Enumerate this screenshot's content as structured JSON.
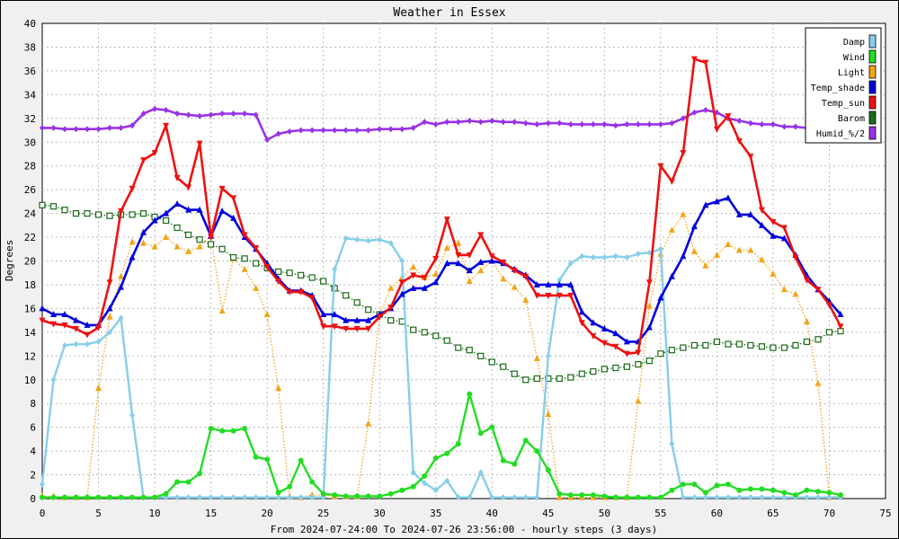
{
  "chart_data": {
    "type": "line",
    "title": "Weather in Essex",
    "xlabel": "From 2024-07-24:00 To 2024-07-26 23:56:00 - hourly steps (3 days)",
    "ylabel": "Degrees",
    "xlim": [
      0,
      75
    ],
    "ylim": [
      0,
      40
    ],
    "xticks": [
      0,
      5,
      10,
      15,
      20,
      25,
      30,
      35,
      40,
      45,
      50,
      55,
      60,
      65,
      70,
      75
    ],
    "yticks": [
      0,
      2,
      4,
      6,
      8,
      10,
      12,
      14,
      16,
      18,
      20,
      22,
      24,
      26,
      28,
      30,
      32,
      34,
      36,
      38,
      40
    ],
    "grid": true,
    "legend_position": "top-right",
    "series": [
      {
        "name": "Damp",
        "color": "#87ceeb",
        "marker": "diamond",
        "style": "solid",
        "x": [
          0,
          1,
          2,
          3,
          4,
          5,
          6,
          7,
          8,
          9,
          10,
          11,
          12,
          13,
          14,
          15,
          16,
          17,
          18,
          19,
          20,
          21,
          22,
          23,
          24,
          25,
          26,
          27,
          28,
          29,
          30,
          31,
          32,
          33,
          34,
          35,
          36,
          37,
          38,
          39,
          40,
          41,
          42,
          43,
          44,
          45,
          46,
          47,
          48,
          49,
          50,
          51,
          52,
          53,
          54,
          55,
          56,
          57,
          58,
          59,
          60,
          61,
          62,
          63,
          64,
          65,
          66,
          67,
          68,
          69,
          70,
          71
        ],
        "values": [
          1.2,
          10.0,
          12.9,
          13.0,
          13.0,
          13.2,
          14.0,
          15.2,
          7.0,
          0.1,
          0.1,
          0.1,
          0.1,
          0.1,
          0.1,
          0.1,
          0.1,
          0.1,
          0.1,
          0.1,
          0.1,
          0.1,
          0.1,
          0.1,
          0.1,
          0.1,
          19.3,
          21.9,
          21.8,
          21.7,
          21.8,
          21.5,
          20.0,
          2.2,
          1.3,
          0.7,
          1.5,
          0.1,
          0.1,
          2.2,
          0.1,
          0.1,
          0.1,
          0.1,
          0.1,
          12.0,
          18.4,
          19.8,
          20.4,
          20.3,
          20.3,
          20.4,
          20.3,
          20.6,
          20.7,
          21.0,
          4.6,
          0.1,
          0.1,
          0.1,
          0.1,
          0.1,
          0.1,
          0.1,
          0.1,
          0.1,
          0.1,
          0.1,
          0.1,
          0.1,
          0.1,
          0.1
        ]
      },
      {
        "name": "Wind",
        "color": "#22dd22",
        "marker": "circle",
        "style": "solid",
        "x": [
          0,
          1,
          2,
          3,
          4,
          5,
          6,
          7,
          8,
          9,
          10,
          11,
          12,
          13,
          14,
          15,
          16,
          17,
          18,
          19,
          20,
          21,
          22,
          23,
          24,
          25,
          26,
          27,
          28,
          29,
          30,
          31,
          32,
          33,
          34,
          35,
          36,
          37,
          38,
          39,
          40,
          41,
          42,
          43,
          44,
          45,
          46,
          47,
          48,
          49,
          50,
          51,
          52,
          53,
          54,
          55,
          56,
          57,
          58,
          59,
          60,
          61,
          62,
          63,
          64,
          65,
          66,
          67,
          68,
          69,
          70,
          71
        ],
        "values": [
          0.1,
          0.1,
          0.1,
          0.1,
          0.1,
          0.1,
          0.1,
          0.1,
          0.1,
          0.1,
          0.1,
          0.4,
          1.4,
          1.4,
          2.1,
          5.9,
          5.7,
          5.7,
          5.9,
          3.5,
          3.3,
          0.5,
          1.0,
          3.2,
          1.4,
          0.4,
          0.3,
          0.2,
          0.2,
          0.2,
          0.2,
          0.4,
          0.7,
          1.0,
          1.9,
          3.4,
          3.8,
          4.6,
          8.8,
          5.5,
          6.0,
          3.2,
          2.9,
          4.9,
          4.0,
          2.4,
          0.4,
          0.3,
          0.3,
          0.3,
          0.2,
          0.1,
          0.1,
          0.1,
          0.1,
          0.1,
          0.7,
          1.2,
          1.2,
          0.5,
          1.1,
          1.2,
          0.7,
          0.8,
          0.8,
          0.7,
          0.5,
          0.3,
          0.7,
          0.6,
          0.5,
          0.3
        ]
      },
      {
        "name": "Light",
        "color": "#f4a418",
        "marker": "triangle-up",
        "style": "dotted",
        "x": [
          0,
          1,
          2,
          3,
          4,
          5,
          6,
          7,
          8,
          9,
          10,
          11,
          12,
          13,
          14,
          15,
          16,
          17,
          18,
          19,
          20,
          21,
          22,
          23,
          24,
          25,
          26,
          27,
          28,
          29,
          30,
          31,
          32,
          33,
          34,
          35,
          36,
          37,
          38,
          39,
          40,
          41,
          42,
          43,
          44,
          45,
          46,
          47,
          48,
          49,
          50,
          51,
          52,
          53,
          54,
          55,
          56,
          57,
          58,
          59,
          60,
          61,
          62,
          63,
          64,
          65,
          66,
          67,
          68,
          69,
          70,
          71
        ],
        "values": [
          0.2,
          0.2,
          0.1,
          0.1,
          0.1,
          9.3,
          15.3,
          18.7,
          21.6,
          21.5,
          21.2,
          22.0,
          21.2,
          20.8,
          21.2,
          22.1,
          15.8,
          20.2,
          19.3,
          17.7,
          15.5,
          9.3,
          0.2,
          0.1,
          0.3,
          0.3,
          0.2,
          0.2,
          0.2,
          6.3,
          15.5,
          17.7,
          18.6,
          19.5,
          18.6,
          18.9,
          21.1,
          21.5,
          18.3,
          19.2,
          20.0,
          18.5,
          17.8,
          16.7,
          11.8,
          7.1,
          0.1,
          0.1,
          0.1,
          0.1,
          0.1,
          0.1,
          0.1,
          8.2,
          16.2,
          20.6,
          22.6,
          23.9,
          20.8,
          19.6,
          20.5,
          21.4,
          20.9,
          20.9,
          20.1,
          18.9,
          17.6,
          17.2,
          14.9,
          9.7,
          0.1,
          0.3
        ]
      },
      {
        "name": "Temp_shade",
        "color": "#0000dd",
        "marker": "triangle-up",
        "style": "solid",
        "x": [
          0,
          1,
          2,
          3,
          4,
          5,
          6,
          7,
          8,
          9,
          10,
          11,
          12,
          13,
          14,
          15,
          16,
          17,
          18,
          19,
          20,
          21,
          22,
          23,
          24,
          25,
          26,
          27,
          28,
          29,
          30,
          31,
          32,
          33,
          34,
          35,
          36,
          37,
          38,
          39,
          40,
          41,
          42,
          43,
          44,
          45,
          46,
          47,
          48,
          49,
          50,
          51,
          52,
          53,
          54,
          55,
          56,
          57,
          58,
          59,
          60,
          61,
          62,
          63,
          64,
          65,
          66,
          67,
          68,
          69,
          70,
          71
        ],
        "values": [
          16.0,
          15.5,
          15.5,
          15.0,
          14.6,
          14.6,
          16.0,
          17.8,
          20.3,
          22.4,
          23.4,
          24.0,
          24.8,
          24.3,
          24.3,
          22.1,
          24.2,
          23.6,
          22.0,
          21.0,
          19.8,
          18.5,
          17.5,
          17.5,
          17.1,
          15.5,
          15.5,
          15.0,
          15.0,
          15.0,
          15.5,
          16.0,
          17.2,
          17.7,
          17.7,
          18.2,
          19.8,
          19.8,
          19.2,
          19.9,
          20.0,
          19.8,
          19.3,
          18.8,
          18.0,
          18.0,
          18.0,
          18.0,
          15.7,
          14.8,
          14.3,
          13.9,
          13.2,
          13.2,
          14.4,
          16.9,
          18.7,
          20.4,
          22.9,
          24.7,
          25.0,
          25.3,
          23.9,
          23.9,
          23.0,
          22.1,
          21.9,
          20.5,
          18.8,
          17.6,
          16.6,
          15.5
        ]
      },
      {
        "name": "Temp_sun",
        "color": "#ee1111",
        "marker": "triangle-down",
        "style": "solid",
        "x": [
          0,
          1,
          2,
          3,
          4,
          5,
          6,
          7,
          8,
          9,
          10,
          11,
          12,
          13,
          14,
          15,
          16,
          17,
          18,
          19,
          20,
          21,
          22,
          23,
          24,
          25,
          26,
          27,
          28,
          29,
          30,
          31,
          32,
          33,
          34,
          35,
          36,
          37,
          38,
          39,
          40,
          41,
          42,
          43,
          44,
          45,
          46,
          47,
          48,
          49,
          50,
          51,
          52,
          53,
          54,
          55,
          56,
          57,
          58,
          59,
          60,
          61,
          62,
          63,
          64,
          65,
          66,
          67,
          68,
          69,
          70,
          71
        ],
        "values": [
          15.0,
          14.7,
          14.6,
          14.3,
          13.8,
          14.4,
          18.2,
          24.2,
          26.1,
          28.5,
          29.1,
          31.4,
          27.0,
          26.2,
          29.9,
          22.0,
          26.1,
          25.3,
          22.2,
          21.1,
          19.5,
          18.3,
          17.4,
          17.4,
          16.9,
          14.5,
          14.5,
          14.3,
          14.3,
          14.3,
          15.3,
          16.1,
          18.2,
          18.8,
          18.6,
          20.2,
          23.5,
          20.5,
          20.5,
          22.2,
          20.4,
          19.9,
          19.2,
          18.7,
          17.1,
          17.1,
          17.1,
          17.1,
          14.8,
          13.7,
          13.1,
          12.8,
          12.2,
          12.3,
          18.2,
          28.0,
          26.7,
          29.1,
          37.0,
          36.7,
          31.1,
          32.2,
          30.1,
          28.8,
          24.3,
          23.3,
          22.8,
          20.3,
          18.4,
          17.6,
          16.3,
          14.5
        ]
      },
      {
        "name": "Barom",
        "color": "#1a6b1a",
        "marker": "square",
        "style": "dotted",
        "x": [
          0,
          1,
          2,
          3,
          4,
          5,
          6,
          7,
          8,
          9,
          10,
          11,
          12,
          13,
          14,
          15,
          16,
          17,
          18,
          19,
          20,
          21,
          22,
          23,
          24,
          25,
          26,
          27,
          28,
          29,
          30,
          31,
          32,
          33,
          34,
          35,
          36,
          37,
          38,
          39,
          40,
          41,
          42,
          43,
          44,
          45,
          46,
          47,
          48,
          49,
          50,
          51,
          52,
          53,
          54,
          55,
          56,
          57,
          58,
          59,
          60,
          61,
          62,
          63,
          64,
          65,
          66,
          67,
          68,
          69,
          70,
          71
        ],
        "values": [
          24.7,
          24.6,
          24.3,
          24.0,
          24.0,
          23.9,
          23.8,
          23.9,
          23.9,
          24.0,
          23.7,
          23.4,
          22.8,
          22.2,
          21.8,
          21.4,
          21.0,
          20.3,
          20.2,
          19.8,
          19.4,
          19.1,
          19.0,
          18.8,
          18.6,
          18.3,
          17.7,
          17.1,
          16.5,
          15.9,
          15.5,
          15.0,
          14.9,
          14.2,
          14.0,
          13.7,
          13.3,
          12.7,
          12.5,
          12.0,
          11.5,
          11.1,
          10.5,
          10.0,
          10.1,
          10.1,
          10.1,
          10.2,
          10.5,
          10.7,
          10.9,
          11.0,
          11.1,
          11.3,
          11.6,
          12.2,
          12.5,
          12.7,
          12.9,
          12.9,
          13.2,
          13.0,
          13.0,
          12.9,
          12.8,
          12.7,
          12.7,
          12.9,
          13.2,
          13.4,
          14.0,
          14.1
        ]
      },
      {
        "name": "Humid_%/2",
        "color": "#9932e6",
        "marker": "diamond",
        "style": "solid",
        "x": [
          0,
          1,
          2,
          3,
          4,
          5,
          6,
          7,
          8,
          9,
          10,
          11,
          12,
          13,
          14,
          15,
          16,
          17,
          18,
          19,
          20,
          21,
          22,
          23,
          24,
          25,
          26,
          27,
          28,
          29,
          30,
          31,
          32,
          33,
          34,
          35,
          36,
          37,
          38,
          39,
          40,
          41,
          42,
          43,
          44,
          45,
          46,
          47,
          48,
          49,
          50,
          51,
          52,
          53,
          54,
          55,
          56,
          57,
          58,
          59,
          60,
          61,
          62,
          63,
          64,
          65,
          66,
          67,
          68,
          69,
          70,
          71
        ],
        "values": [
          31.2,
          31.2,
          31.1,
          31.1,
          31.1,
          31.1,
          31.2,
          31.2,
          31.4,
          32.4,
          32.8,
          32.7,
          32.4,
          32.3,
          32.2,
          32.3,
          32.4,
          32.4,
          32.4,
          32.3,
          30.2,
          30.7,
          30.9,
          31.0,
          31.0,
          31.0,
          31.0,
          31.0,
          31.0,
          31.0,
          31.1,
          31.1,
          31.1,
          31.2,
          31.7,
          31.5,
          31.7,
          31.7,
          31.8,
          31.7,
          31.8,
          31.7,
          31.7,
          31.6,
          31.5,
          31.6,
          31.6,
          31.5,
          31.5,
          31.5,
          31.5,
          31.4,
          31.5,
          31.5,
          31.5,
          31.5,
          31.6,
          32.0,
          32.5,
          32.7,
          32.5,
          32.0,
          31.8,
          31.6,
          31.5,
          31.5,
          31.3,
          31.3,
          31.2,
          31.2,
          31.1,
          31.1
        ]
      }
    ]
  }
}
